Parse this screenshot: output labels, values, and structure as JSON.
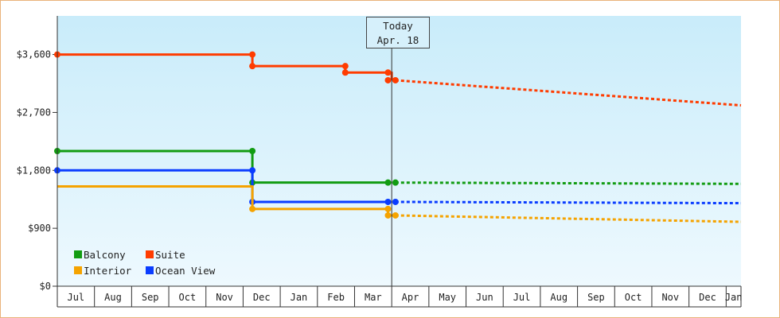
{
  "chart_data": {
    "type": "line",
    "subtype": "step",
    "x_axis": {
      "tick_labels": [
        "Jul",
        "Aug",
        "Sep",
        "Oct",
        "Nov",
        "Dec",
        "Jan",
        "Feb",
        "Mar",
        "Apr",
        "May",
        "Jun",
        "Jul",
        "Aug",
        "Sep",
        "Oct",
        "Nov",
        "Dec",
        "Jan"
      ],
      "range_months": [
        0,
        18.4
      ]
    },
    "y_axis": {
      "tick_labels": [
        "$0",
        "$900",
        "$1,800",
        "$2,700",
        "$3,600"
      ],
      "tick_values": [
        0,
        900,
        1800,
        2700,
        3600
      ],
      "ylim": [
        0,
        4200
      ]
    },
    "today_marker": {
      "line1": "Today",
      "line2": "Apr. 18",
      "x_month": 9.0
    },
    "legend": {
      "placement": "bottom-left"
    },
    "background": {
      "top_color": "#c9ecfa",
      "bottom_color": "#eef9fe"
    },
    "series": [
      {
        "name": "Suite",
        "color": "#ff3c00",
        "steps": [
          [
            0,
            3600
          ],
          [
            5.25,
            3600
          ],
          [
            5.25,
            3420
          ],
          [
            7.75,
            3420
          ],
          [
            7.75,
            3320
          ],
          [
            9.0,
            3320
          ],
          [
            9.0,
            3200
          ]
        ],
        "markers": [
          [
            0,
            3600
          ],
          [
            5.25,
            3600
          ],
          [
            5.25,
            3420
          ],
          [
            7.75,
            3420
          ],
          [
            7.75,
            3320
          ],
          [
            8.9,
            3320
          ],
          [
            8.9,
            3200
          ],
          [
            9.1,
            3200
          ]
        ],
        "forecast": [
          [
            9.1,
            3200
          ],
          [
            18.4,
            2810
          ]
        ]
      },
      {
        "name": "Balcony",
        "color": "#129c12",
        "steps": [
          [
            0,
            2100
          ],
          [
            5.25,
            2100
          ],
          [
            5.25,
            1610
          ],
          [
            9.0,
            1610
          ]
        ],
        "markers": [
          [
            0,
            2100
          ],
          [
            5.25,
            2100
          ],
          [
            5.25,
            1610
          ],
          [
            8.9,
            1610
          ],
          [
            9.1,
            1610
          ]
        ],
        "forecast": [
          [
            9.1,
            1610
          ],
          [
            18.4,
            1590
          ]
        ]
      },
      {
        "name": "Ocean View",
        "color": "#0a3cff",
        "steps": [
          [
            0,
            1800
          ],
          [
            5.25,
            1800
          ],
          [
            5.25,
            1310
          ],
          [
            9.0,
            1310
          ]
        ],
        "markers": [
          [
            0,
            1800
          ],
          [
            5.25,
            1800
          ],
          [
            5.25,
            1310
          ],
          [
            8.9,
            1310
          ],
          [
            9.1,
            1310
          ]
        ],
        "forecast": [
          [
            9.1,
            1310
          ],
          [
            18.4,
            1290
          ]
        ]
      },
      {
        "name": "Interior",
        "color": "#f5a300",
        "steps": [
          [
            0,
            1550
          ],
          [
            5.25,
            1550
          ],
          [
            5.25,
            1200
          ],
          [
            8.9,
            1200
          ],
          [
            8.9,
            1100
          ],
          [
            9.1,
            1100
          ]
        ],
        "markers": [
          [
            5.25,
            1200
          ],
          [
            8.9,
            1200
          ],
          [
            8.9,
            1100
          ],
          [
            9.1,
            1100
          ]
        ],
        "forecast": [
          [
            9.1,
            1100
          ],
          [
            18.4,
            1000
          ]
        ]
      }
    ],
    "legend_entries": [
      {
        "label": "Balcony",
        "color": "#129c12"
      },
      {
        "label": "Suite",
        "color": "#ff3c00"
      },
      {
        "label": "Interior",
        "color": "#f5a300"
      },
      {
        "label": "Ocean View",
        "color": "#0a3cff"
      }
    ]
  }
}
